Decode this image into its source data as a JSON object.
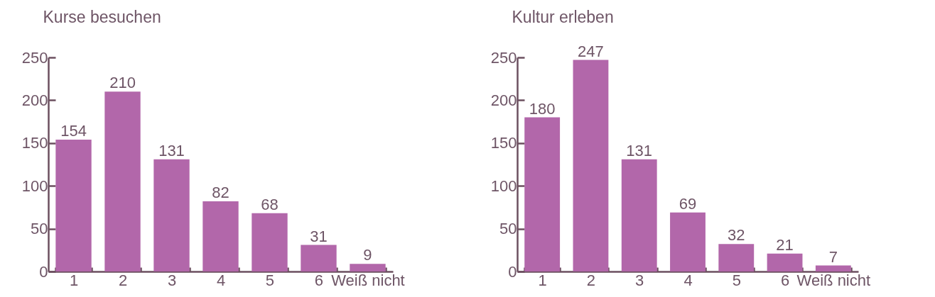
{
  "chart_data": [
    {
      "type": "bar",
      "title": "Kurse besuchen",
      "categories": [
        "1",
        "2",
        "3",
        "4",
        "5",
        "6",
        "Weiß nicht"
      ],
      "values": [
        154,
        210,
        131,
        82,
        68,
        31,
        9
      ],
      "color": "#b267aa",
      "ylim": [
        0,
        250
      ],
      "yticks": [
        0,
        50,
        100,
        150,
        200,
        250
      ],
      "data_labels": true
    },
    {
      "type": "bar",
      "title": "Kultur erleben",
      "categories": [
        "1",
        "2",
        "3",
        "4",
        "5",
        "6",
        "Weiß nicht"
      ],
      "values": [
        180,
        247,
        131,
        69,
        32,
        21,
        7
      ],
      "color": "#b267aa",
      "ylim": [
        0,
        250
      ],
      "yticks": [
        0,
        50,
        100,
        150,
        200,
        250
      ],
      "data_labels": true
    }
  ]
}
